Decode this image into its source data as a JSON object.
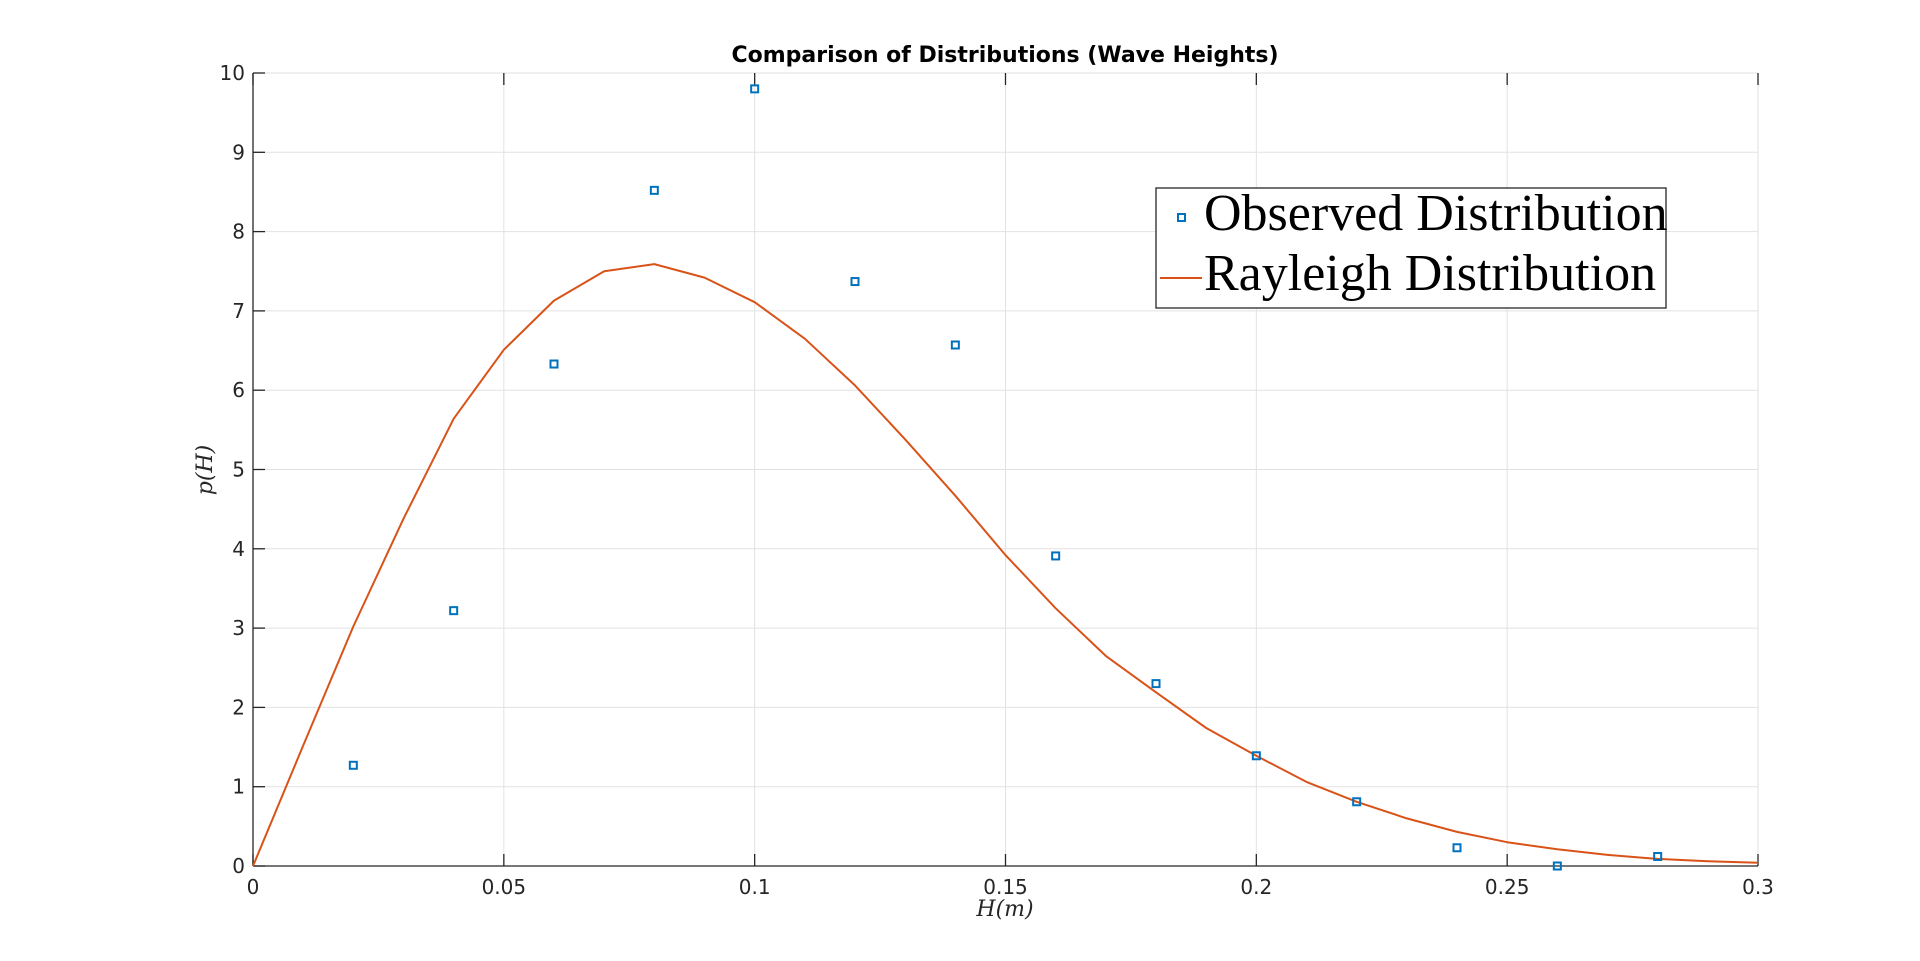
{
  "chart_data": {
    "type": "line",
    "title": "Comparison of Distributions (Wave Heights)",
    "xlabel": "H(m)",
    "ylabel": "p(H)",
    "xlim": [
      0,
      0.3
    ],
    "ylim": [
      0,
      10
    ],
    "xticks": [
      0,
      0.05,
      0.1,
      0.15,
      0.2,
      0.25,
      0.3
    ],
    "xtick_labels": [
      "0",
      "0.05",
      "0.1",
      "0.15",
      "0.2",
      "0.25",
      "0.3"
    ],
    "yticks": [
      0,
      1,
      2,
      3,
      4,
      5,
      6,
      7,
      8,
      9,
      10
    ],
    "ytick_labels": [
      "0",
      "1",
      "2",
      "3",
      "4",
      "5",
      "6",
      "7",
      "8",
      "9",
      "10"
    ],
    "grid": true,
    "legend_position": "top-right",
    "series": [
      {
        "name": "Observed Distribution",
        "kind": "scatter",
        "marker": "square",
        "color": "#0072BD",
        "x": [
          0.02,
          0.04,
          0.06,
          0.08,
          0.1,
          0.12,
          0.14,
          0.16,
          0.18,
          0.2,
          0.22,
          0.24,
          0.26,
          0.28
        ],
        "y": [
          1.27,
          3.22,
          6.33,
          8.52,
          9.8,
          7.37,
          6.57,
          3.91,
          2.3,
          1.39,
          0.81,
          0.23,
          0.0,
          0.12
        ]
      },
      {
        "name": "Rayleigh Distribution",
        "kind": "line",
        "color": "#D95319",
        "x": [
          0,
          0.01,
          0.02,
          0.03,
          0.04,
          0.05,
          0.06,
          0.07,
          0.08,
          0.09,
          0.1,
          0.11,
          0.12,
          0.13,
          0.14,
          0.15,
          0.16,
          0.17,
          0.18,
          0.19,
          0.2,
          0.21,
          0.22,
          0.23,
          0.24,
          0.25,
          0.26,
          0.27,
          0.28,
          0.29,
          0.3
        ],
        "y": [
          0,
          1.52,
          3.02,
          4.38,
          5.64,
          6.51,
          7.13,
          7.5,
          7.59,
          7.42,
          7.11,
          6.65,
          6.06,
          5.38,
          4.67,
          3.92,
          3.25,
          2.65,
          2.19,
          1.74,
          1.39,
          1.06,
          0.81,
          0.6,
          0.43,
          0.3,
          0.21,
          0.14,
          0.09,
          0.06,
          0.04
        ]
      }
    ]
  }
}
